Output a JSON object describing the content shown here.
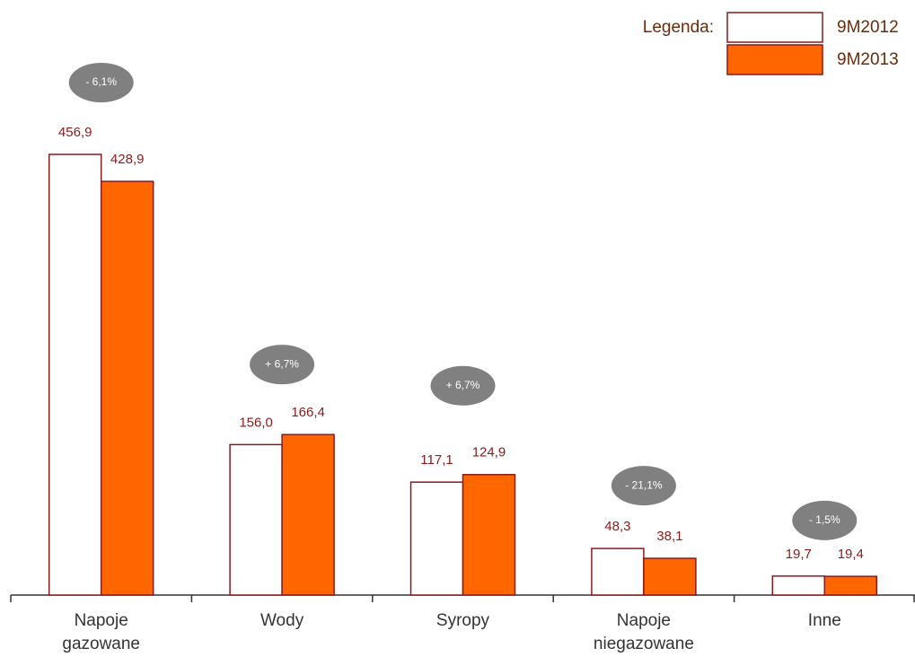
{
  "chart_data": {
    "type": "bar",
    "categories": [
      "Napoje gazowane",
      "Wody",
      "Syropy",
      "Napoje niegazowane",
      "Inne"
    ],
    "series": [
      {
        "name": "9M2012",
        "color": "#ffffff",
        "values": [
          456.9,
          156.0,
          117.1,
          48.3,
          19.7
        ],
        "value_labels": [
          "456,9",
          "156,0",
          "117,1",
          "48,3",
          "19,7"
        ]
      },
      {
        "name": "9M2013",
        "color": "#ff6600",
        "values": [
          428.9,
          166.4,
          124.9,
          38.1,
          19.4
        ],
        "value_labels": [
          "428,9",
          "166,4",
          "124,9",
          "38,1",
          "19,4"
        ]
      }
    ],
    "annotations": [
      "- 6,1%",
      "+ 6,7%",
      "+ 6,7%",
      "- 21,1%",
      "- 1,5%"
    ],
    "legend_title": "Legenda:",
    "legend_position": "top-right"
  }
}
